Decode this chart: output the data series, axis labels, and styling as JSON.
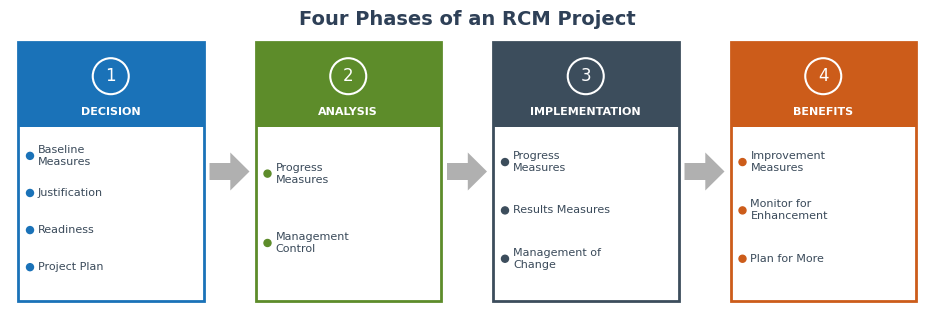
{
  "title": "Four Phases of an RCM Project",
  "title_color": "#2e4057",
  "title_fontsize": 14,
  "background_color": "#ffffff",
  "phases": [
    {
      "number": "1",
      "header": "DECISION",
      "header_bg": "#1a72b8",
      "bullet_color": "#1a72b8",
      "border_color": "#1a72b8",
      "items": [
        "Baseline\nMeasures",
        "Justification",
        "Readiness",
        "Project Plan"
      ]
    },
    {
      "number": "2",
      "header": "ANALYSIS",
      "header_bg": "#5d8c2a",
      "bullet_color": "#5d8c2a",
      "border_color": "#5d8c2a",
      "items": [
        "Progress\nMeasures",
        "Management\nControl"
      ]
    },
    {
      "number": "3",
      "header": "IMPLEMENTATION",
      "header_bg": "#3c4d5c",
      "bullet_color": "#3c4d5c",
      "border_color": "#3c4d5c",
      "items": [
        "Progress\nMeasures",
        "Results Measures",
        "Management of\nChange"
      ]
    },
    {
      "number": "4",
      "header": "BENEFITS",
      "header_bg": "#cc5c1a",
      "bullet_color": "#cc5c1a",
      "border_color": "#cc5c1a",
      "items": [
        "Improvement\nMeasures",
        "Monitor for\nEnhancement",
        "Plan for More"
      ]
    }
  ],
  "arrow_color": "#b0b0b0",
  "text_color": "#3a4a5a"
}
